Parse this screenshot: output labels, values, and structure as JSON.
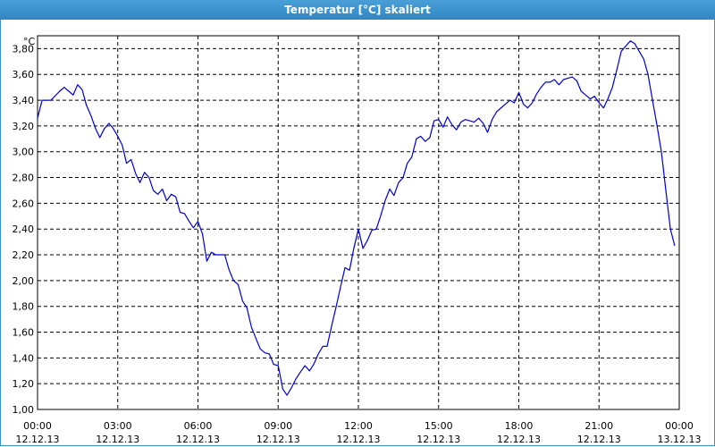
{
  "window": {
    "title": "Temperatur [°C] skaliert"
  },
  "colors": {
    "titlebar": "#3b8fcc",
    "line": "#0000cc",
    "grid": "#000000"
  },
  "chart_data": {
    "type": "line",
    "title": "Temperatur [°C] skaliert",
    "ylabel": "°C",
    "xlabel": "",
    "ylim": [
      1.0,
      3.9
    ],
    "xlim_hours": [
      0,
      24
    ],
    "grid": true,
    "yticks": [
      "1,00",
      "1,20",
      "1,40",
      "1,60",
      "1,80",
      "2,00",
      "2,20",
      "2,40",
      "2,60",
      "2,80",
      "3,00",
      "3,20",
      "3,40",
      "3,60",
      "3,80"
    ],
    "xticks": [
      {
        "time": "00:00",
        "date": "12.12.13"
      },
      {
        "time": "03:00",
        "date": "12.12.13"
      },
      {
        "time": "06:00",
        "date": "12.12.13"
      },
      {
        "time": "09:00",
        "date": "12.12.13"
      },
      {
        "time": "12:00",
        "date": "12.12.13"
      },
      {
        "time": "15:00",
        "date": "12.12.13"
      },
      {
        "time": "18:00",
        "date": "12.12.13"
      },
      {
        "time": "21:00",
        "date": "12.12.13"
      },
      {
        "time": "00:00",
        "date": "13.12.13"
      }
    ],
    "series": [
      {
        "values": [
          [
            0.0,
            3.26
          ],
          [
            0.17,
            3.4
          ],
          [
            0.5,
            3.4
          ],
          [
            0.83,
            3.47
          ],
          [
            1.0,
            3.5
          ],
          [
            1.17,
            3.47
          ],
          [
            1.33,
            3.44
          ],
          [
            1.5,
            3.52
          ],
          [
            1.67,
            3.48
          ],
          [
            1.83,
            3.36
          ],
          [
            2.0,
            3.28
          ],
          [
            2.17,
            3.18
          ],
          [
            2.33,
            3.11
          ],
          [
            2.5,
            3.18
          ],
          [
            2.67,
            3.22
          ],
          [
            2.83,
            3.18
          ],
          [
            3.0,
            3.12
          ],
          [
            3.17,
            3.05
          ],
          [
            3.33,
            2.91
          ],
          [
            3.5,
            2.94
          ],
          [
            3.67,
            2.83
          ],
          [
            3.83,
            2.76
          ],
          [
            4.0,
            2.84
          ],
          [
            4.17,
            2.8
          ],
          [
            4.33,
            2.7
          ],
          [
            4.5,
            2.67
          ],
          [
            4.67,
            2.71
          ],
          [
            4.83,
            2.62
          ],
          [
            5.0,
            2.67
          ],
          [
            5.17,
            2.65
          ],
          [
            5.33,
            2.53
          ],
          [
            5.5,
            2.52
          ],
          [
            5.67,
            2.46
          ],
          [
            5.83,
            2.41
          ],
          [
            6.0,
            2.46
          ],
          [
            6.17,
            2.36
          ],
          [
            6.33,
            2.15
          ],
          [
            6.5,
            2.22
          ],
          [
            6.67,
            2.2
          ],
          [
            7.0,
            2.2
          ],
          [
            7.17,
            2.08
          ],
          [
            7.33,
            2.0
          ],
          [
            7.5,
            1.97
          ],
          [
            7.67,
            1.84
          ],
          [
            7.83,
            1.79
          ],
          [
            8.0,
            1.64
          ],
          [
            8.17,
            1.55
          ],
          [
            8.33,
            1.47
          ],
          [
            8.5,
            1.44
          ],
          [
            8.67,
            1.43
          ],
          [
            8.83,
            1.35
          ],
          [
            9.0,
            1.34
          ],
          [
            9.17,
            1.16
          ],
          [
            9.33,
            1.11
          ],
          [
            9.5,
            1.17
          ],
          [
            9.67,
            1.24
          ],
          [
            9.83,
            1.29
          ],
          [
            10.0,
            1.34
          ],
          [
            10.17,
            1.3
          ],
          [
            10.33,
            1.35
          ],
          [
            10.5,
            1.43
          ],
          [
            10.67,
            1.49
          ],
          [
            10.83,
            1.49
          ],
          [
            11.0,
            1.65
          ],
          [
            11.17,
            1.8
          ],
          [
            11.33,
            1.95
          ],
          [
            11.5,
            2.1
          ],
          [
            11.67,
            2.08
          ],
          [
            11.83,
            2.25
          ],
          [
            12.0,
            2.4
          ],
          [
            12.17,
            2.25
          ],
          [
            12.33,
            2.31
          ],
          [
            12.5,
            2.39
          ],
          [
            12.67,
            2.4
          ],
          [
            12.83,
            2.5
          ],
          [
            13.0,
            2.62
          ],
          [
            13.17,
            2.71
          ],
          [
            13.33,
            2.66
          ],
          [
            13.5,
            2.76
          ],
          [
            13.67,
            2.8
          ],
          [
            13.83,
            2.91
          ],
          [
            14.0,
            2.96
          ],
          [
            14.17,
            3.1
          ],
          [
            14.33,
            3.12
          ],
          [
            14.5,
            3.08
          ],
          [
            14.67,
            3.11
          ],
          [
            14.83,
            3.24
          ],
          [
            15.0,
            3.25
          ],
          [
            15.17,
            3.19
          ],
          [
            15.33,
            3.27
          ],
          [
            15.5,
            3.21
          ],
          [
            15.67,
            3.17
          ],
          [
            15.83,
            3.23
          ],
          [
            16.0,
            3.25
          ],
          [
            16.33,
            3.23
          ],
          [
            16.5,
            3.26
          ],
          [
            16.67,
            3.22
          ],
          [
            16.83,
            3.15
          ],
          [
            17.0,
            3.25
          ],
          [
            17.17,
            3.31
          ],
          [
            17.5,
            3.37
          ],
          [
            17.67,
            3.4
          ],
          [
            17.83,
            3.38
          ],
          [
            18.0,
            3.46
          ],
          [
            18.17,
            3.37
          ],
          [
            18.33,
            3.34
          ],
          [
            18.5,
            3.38
          ],
          [
            18.67,
            3.45
          ],
          [
            18.83,
            3.5
          ],
          [
            19.0,
            3.54
          ],
          [
            19.17,
            3.54
          ],
          [
            19.33,
            3.56
          ],
          [
            19.5,
            3.52
          ],
          [
            19.67,
            3.56
          ],
          [
            19.83,
            3.57
          ],
          [
            20.0,
            3.58
          ],
          [
            20.17,
            3.55
          ],
          [
            20.33,
            3.47
          ],
          [
            20.5,
            3.44
          ],
          [
            20.67,
            3.41
          ],
          [
            20.83,
            3.43
          ],
          [
            21.0,
            3.38
          ],
          [
            21.17,
            3.34
          ],
          [
            21.33,
            3.41
          ],
          [
            21.5,
            3.5
          ],
          [
            21.67,
            3.64
          ],
          [
            21.83,
            3.78
          ],
          [
            22.0,
            3.82
          ],
          [
            22.17,
            3.86
          ],
          [
            22.33,
            3.84
          ],
          [
            22.5,
            3.78
          ],
          [
            22.67,
            3.72
          ],
          [
            22.83,
            3.6
          ],
          [
            23.0,
            3.4
          ],
          [
            23.17,
            3.2
          ],
          [
            23.33,
            3.0
          ],
          [
            23.5,
            2.7
          ],
          [
            23.67,
            2.4
          ],
          [
            23.83,
            2.27
          ]
        ]
      }
    ]
  }
}
